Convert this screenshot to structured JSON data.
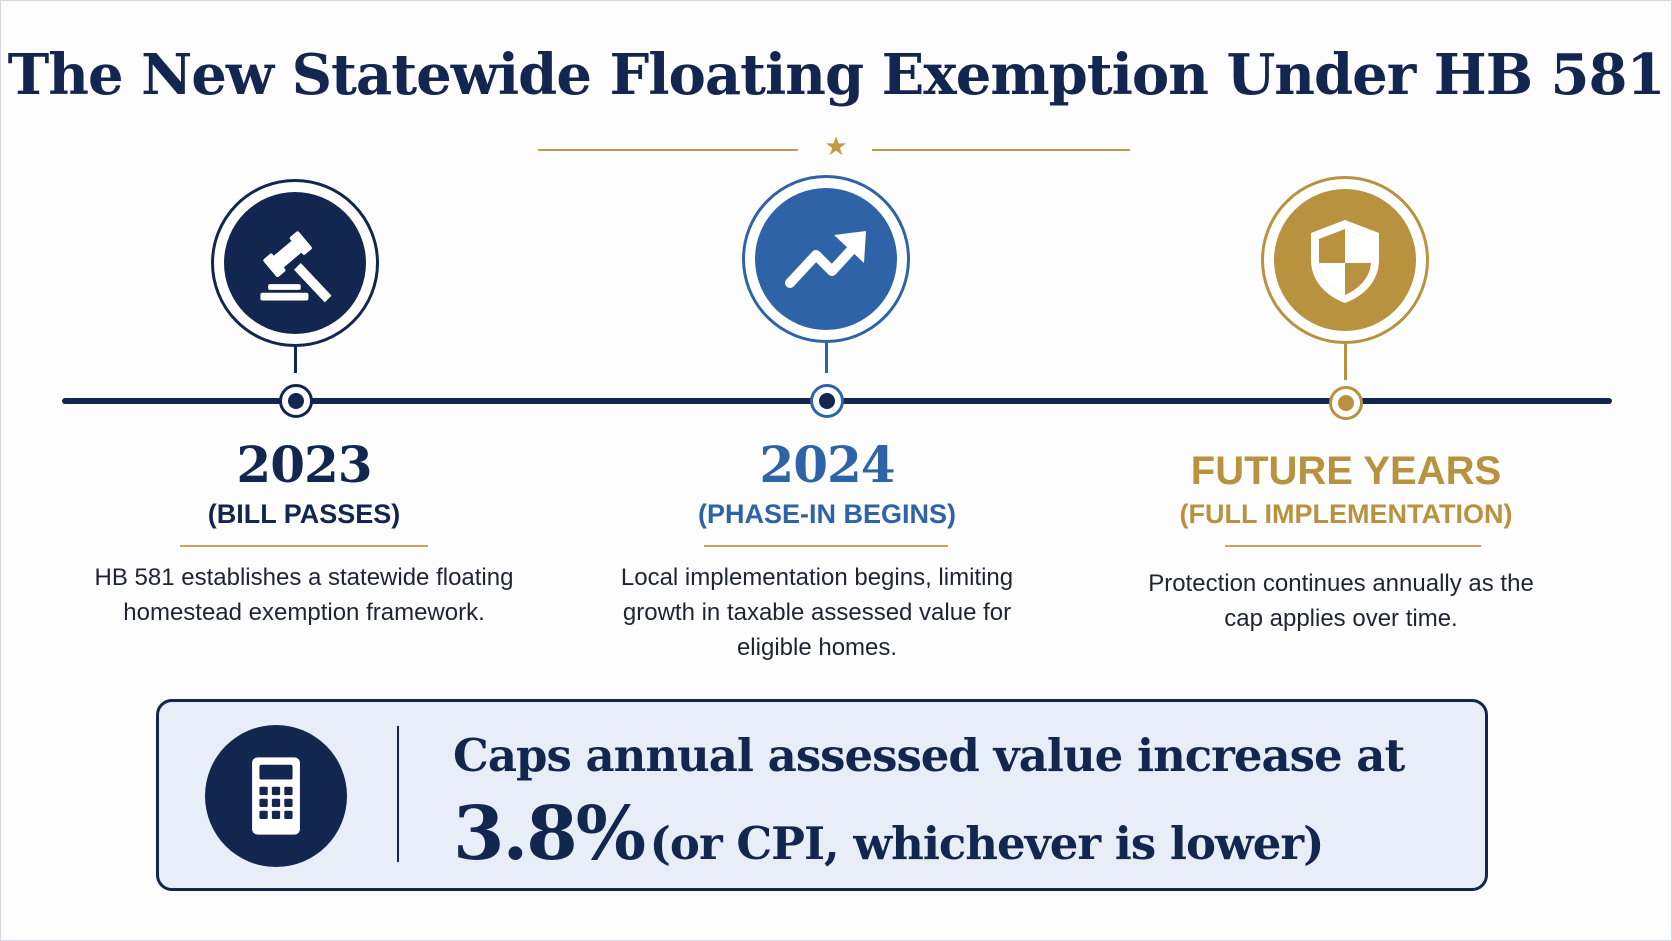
{
  "title": "The New Statewide Floating Exemption Under HB 581",
  "colors": {
    "navy": "#13264f",
    "blue": "#2f63a8",
    "gold": "#b8923f",
    "callout_bg": "#e7eef8"
  },
  "timeline": [
    {
      "icon": "gavel-icon",
      "year": "2023",
      "subtitle": "(BILL PASSES)",
      "description": "HB 581 establishes a statewide floating homestead exemption framework.",
      "color": "#13264f"
    },
    {
      "icon": "trending-up-arrow-icon",
      "year": "2024",
      "subtitle": "(PHASE-IN BEGINS)",
      "description": "Local implementation begins, limiting growth in taxable assessed value for eligible homes.",
      "color": "#2f63a8"
    },
    {
      "icon": "shield-icon",
      "year": "FUTURE YEARS",
      "subtitle": "(FULL IMPLEMENTATION)",
      "description": "Protection continues annually as the cap applies over time.",
      "color": "#b8923f"
    }
  ],
  "callout": {
    "icon": "calculator-icon",
    "line1": "Caps annual assessed value increase at",
    "percent": "3.8%",
    "note": "(or CPI, whichever is lower)"
  }
}
